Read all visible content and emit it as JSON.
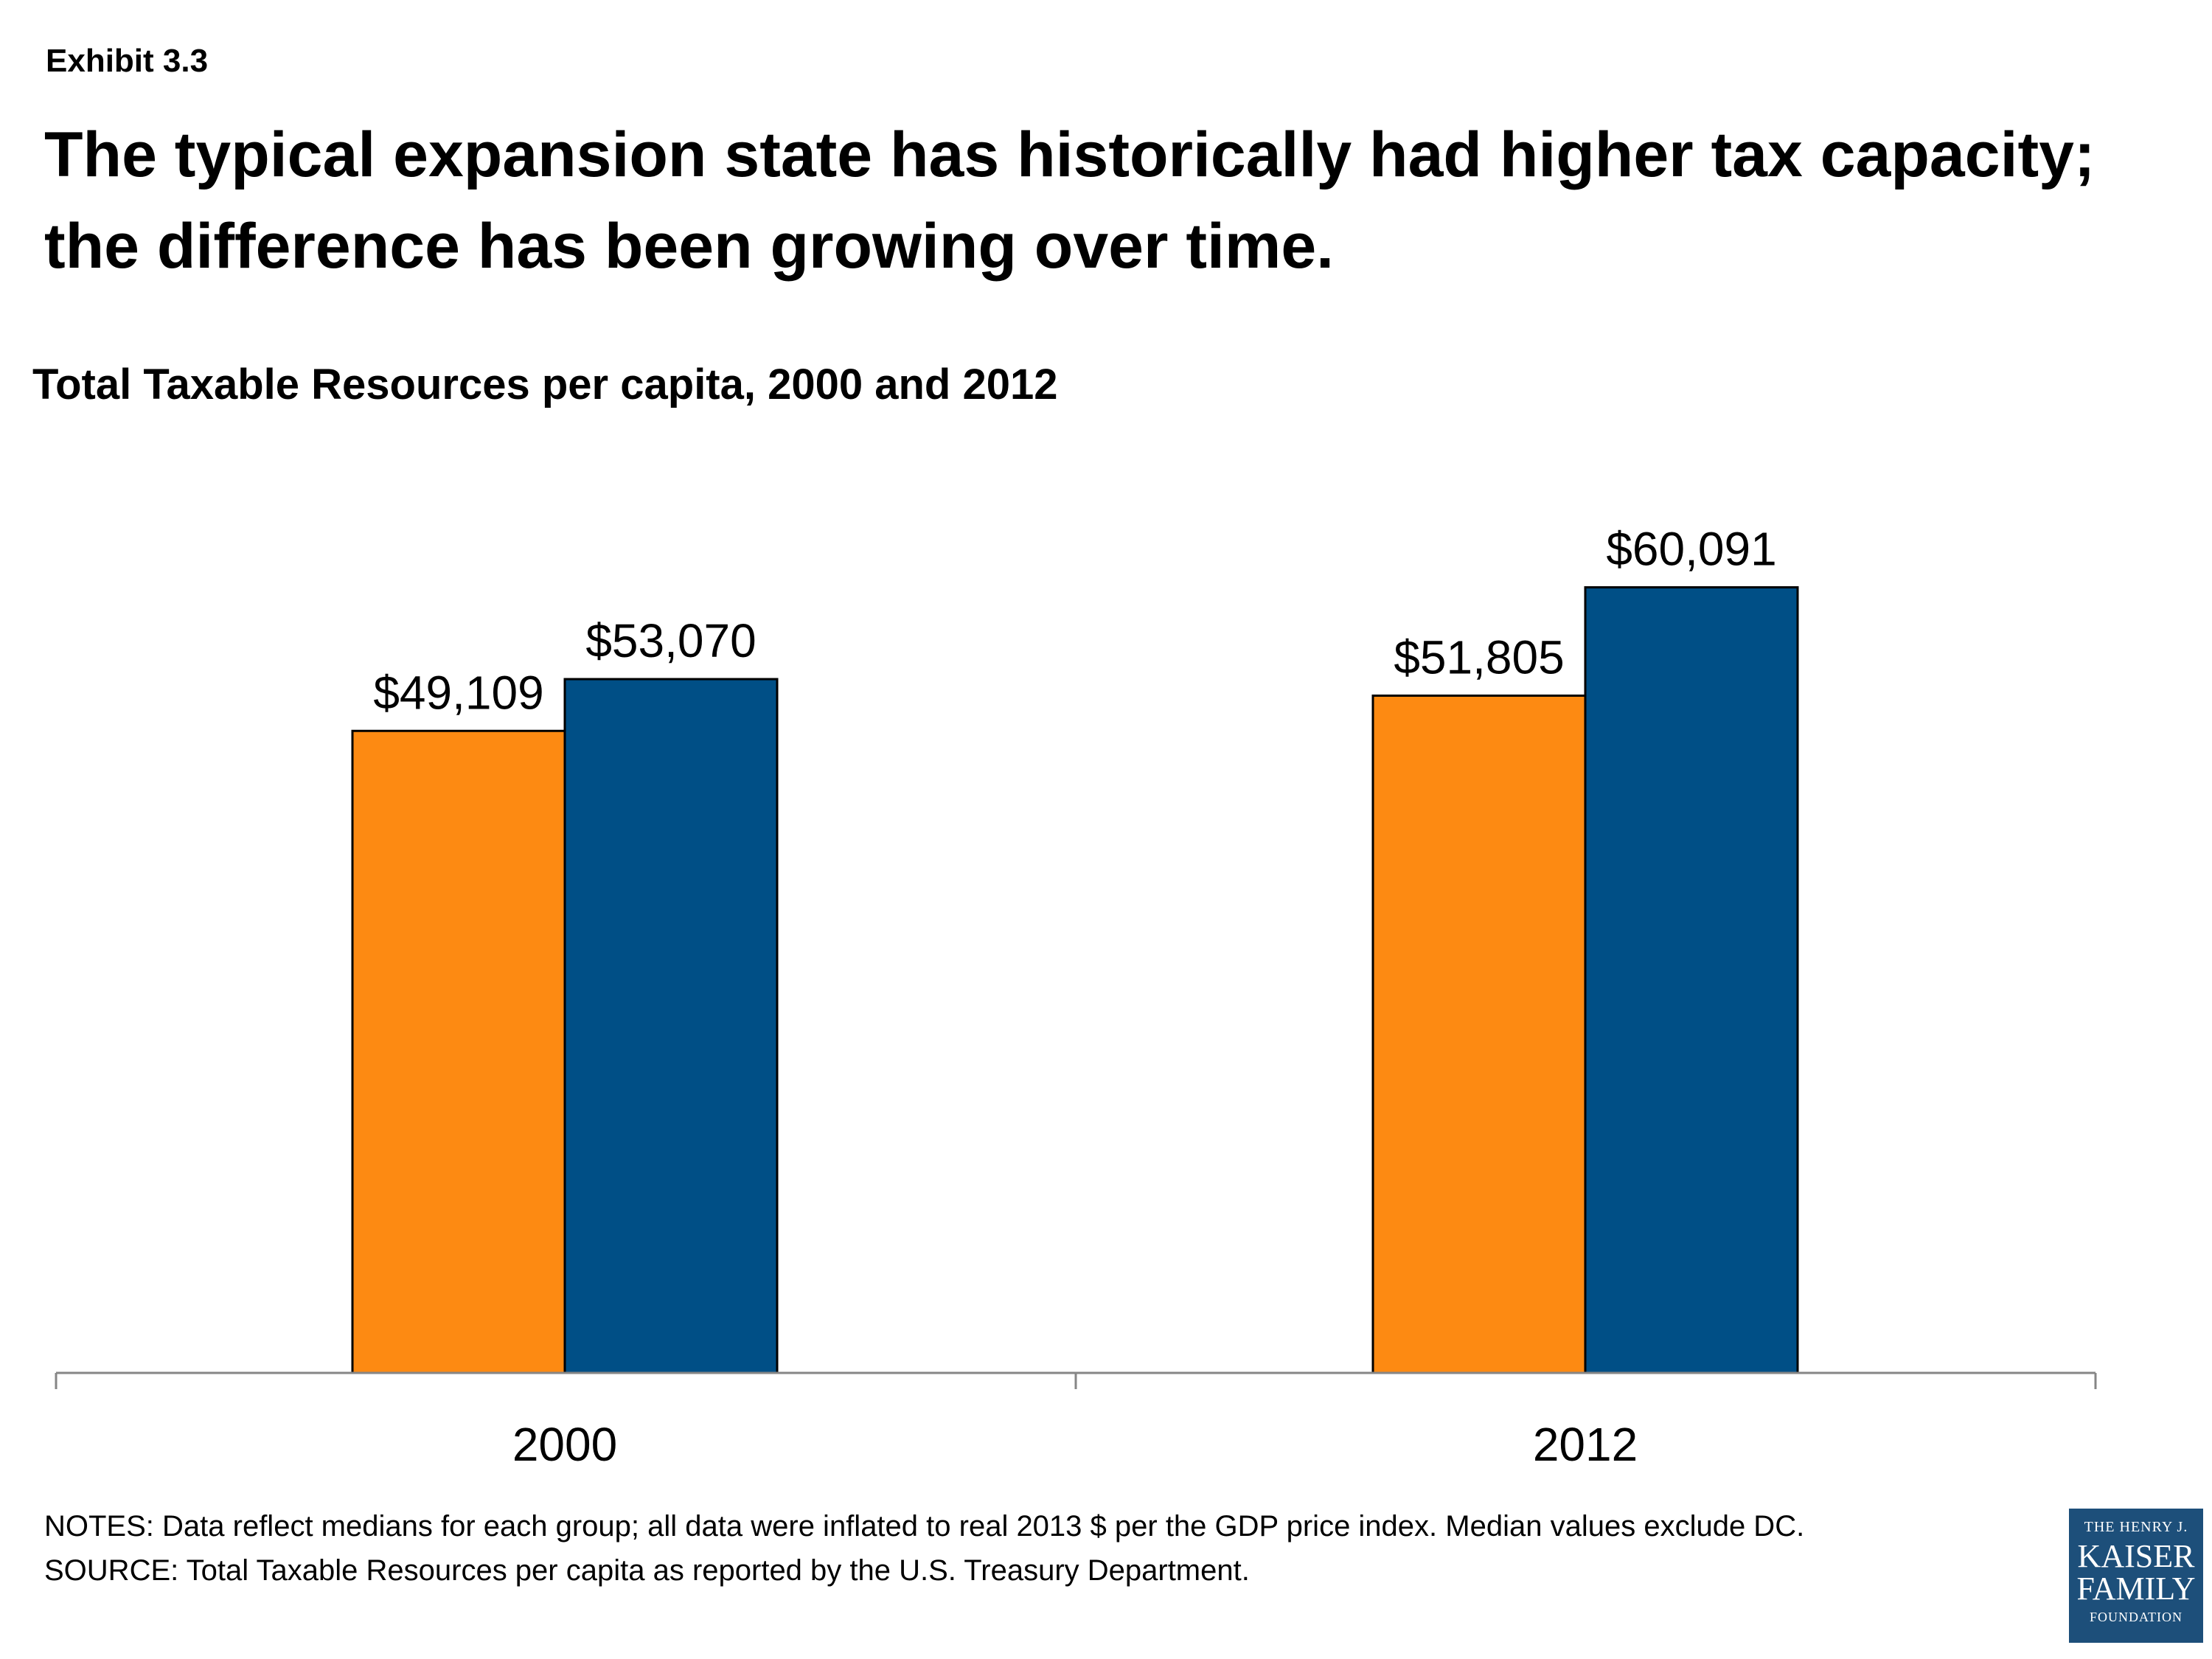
{
  "header": {
    "exhibit": "Exhibit 3.3",
    "headline": "The typical expansion state has historically had higher tax capacity; the difference has been growing over time."
  },
  "chart_data": {
    "type": "bar",
    "title": "Total Taxable Resources per capita, 2000 and 2012",
    "categories": [
      "2000",
      "2012"
    ],
    "series": [
      {
        "values": [
          49109,
          51805
        ],
        "labels": [
          "$49,109",
          "$51,805"
        ],
        "color": "#fd8a12"
      },
      {
        "values": [
          53070,
          60091
        ],
        "labels": [
          "$53,070",
          "$60,091"
        ],
        "color": "#004f86"
      }
    ],
    "ylim": [
      0,
      71000
    ],
    "grid": false,
    "legend": "none"
  },
  "notes": {
    "notes": "NOTES: Data reflect medians for each group; all data were inflated to real 2013 $ per the GDP price index. Median values exclude DC.",
    "source": "SOURCE: Total Taxable Resources per capita as reported by the U.S. Treasury Department."
  },
  "logo": {
    "line1": "THE HENRY J.",
    "line2": "KAISER",
    "line3": "FAMILY",
    "line4": "FOUNDATION"
  }
}
